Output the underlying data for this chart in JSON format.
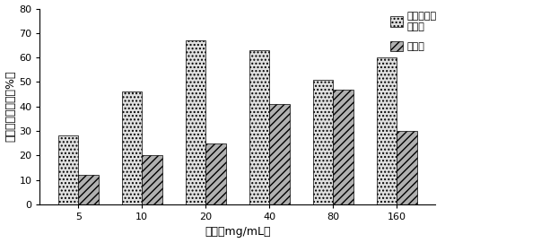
{
  "categories": [
    "5",
    "10",
    "20",
    "40",
    "80",
    "160"
  ],
  "series1_values": [
    28,
    46,
    67,
    63,
    51,
    60
  ],
  "series2_values": [
    12,
    20,
    25,
    41,
    47,
    30
  ],
  "series1_label": "对羟基内桂\n酸乙酯",
  "series2_label": "阿托品",
  "xlabel": "浓度（mg/mL）",
  "ylabel": "张力幅量变化率（%）",
  "ylim": [
    0,
    80
  ],
  "yticks": [
    0,
    10,
    20,
    30,
    40,
    50,
    60,
    70,
    80
  ],
  "bar_width": 0.32,
  "series1_color": "#e0e0e0",
  "series2_color": "#b0b0b0",
  "series1_hatch": "....",
  "series2_hatch": "////",
  "label_fontsize": 9,
  "tick_fontsize": 8,
  "legend_fontsize": 8,
  "fig_width": 6.03,
  "fig_height": 2.71,
  "dpi": 100
}
